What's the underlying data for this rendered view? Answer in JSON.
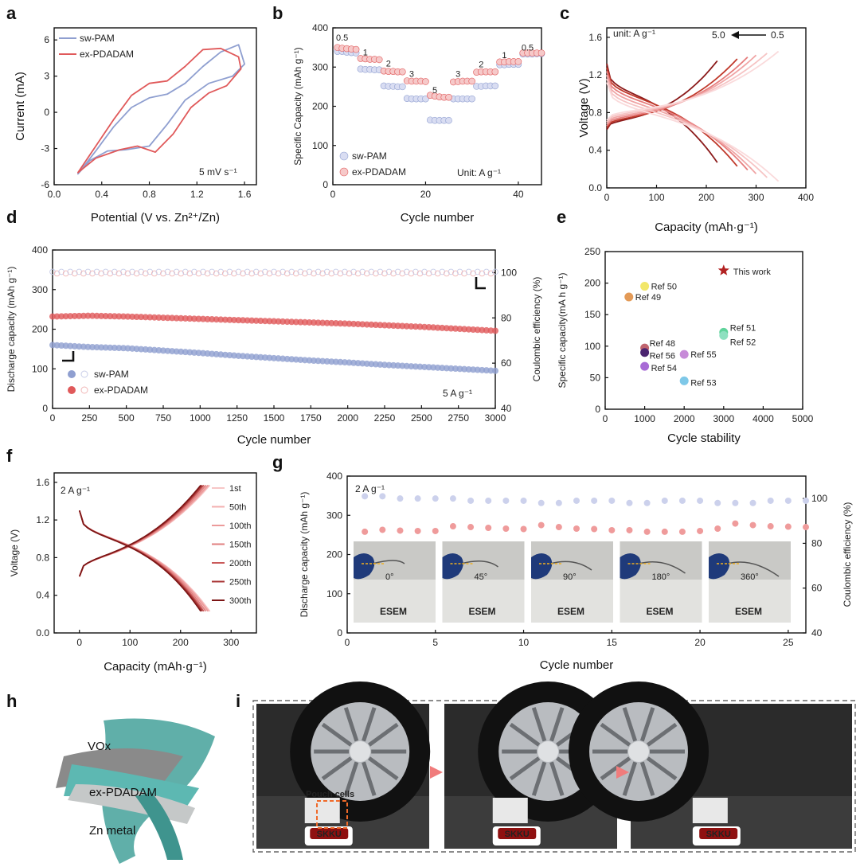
{
  "panel_labels": [
    "a",
    "b",
    "c",
    "d",
    "e",
    "f",
    "g",
    "h",
    "i"
  ],
  "colors": {
    "sw": "#8f9fd0",
    "ex": "#e0595a",
    "ce_sw": "#c8cde8",
    "ce_ex": "#f1b7b7"
  },
  "chart_data": [
    {
      "id": "a",
      "type": "line",
      "xlabel": "Potential (V vs. Zn²⁺/Zn)",
      "ylabel": "Current (mA)",
      "xlim": [
        0.0,
        1.7
      ],
      "ylim": [
        -6,
        7
      ],
      "xticks": [
        "0.0",
        "0.4",
        "0.8",
        "1.2",
        "1.6"
      ],
      "yticks": [
        "-6",
        "-3",
        "0",
        "3",
        "6"
      ],
      "annotation": "5 mV s⁻¹",
      "series": [
        {
          "name": "sw-PAM",
          "x": [
            0.2,
            0.35,
            0.5,
            0.65,
            0.8,
            0.95,
            1.1,
            1.25,
            1.4,
            1.55,
            1.6,
            1.5,
            1.3,
            1.1,
            0.95,
            0.8,
            0.6,
            0.45,
            0.3,
            0.2
          ],
          "y": [
            -5.1,
            -3.2,
            -1.2,
            0.4,
            1.2,
            1.5,
            2.4,
            3.8,
            5.0,
            5.6,
            4.0,
            3.0,
            2.4,
            1.0,
            -1.0,
            -2.8,
            -3.1,
            -3.2,
            -4.0,
            -5.1
          ]
        },
        {
          "name": "ex-PDADAM",
          "x": [
            0.2,
            0.35,
            0.5,
            0.65,
            0.8,
            0.95,
            1.1,
            1.25,
            1.4,
            1.55,
            1.57,
            1.45,
            1.3,
            1.15,
            1.0,
            0.85,
            0.7,
            0.55,
            0.35,
            0.2
          ],
          "y": [
            -5.0,
            -2.8,
            -0.6,
            1.4,
            2.4,
            2.6,
            3.8,
            5.2,
            5.3,
            4.6,
            3.6,
            2.2,
            1.6,
            0.4,
            -1.8,
            -3.3,
            -2.8,
            -3.1,
            -3.8,
            -5.0
          ]
        }
      ]
    },
    {
      "id": "b",
      "type": "scatter",
      "xlabel": "Cycle number",
      "ylabel": "Specific Capacity (mAh g⁻¹)",
      "xlim": [
        0,
        45
      ],
      "ylim": [
        0,
        400
      ],
      "xticks": [
        "0",
        "20",
        "40"
      ],
      "yticks": [
        "0",
        "100",
        "200",
        "300",
        "400"
      ],
      "unit_note": "Unit: A g⁻¹",
      "rate_labels": [
        {
          "text": "0.5",
          "x": 2,
          "y": 368
        },
        {
          "text": "1",
          "x": 7,
          "y": 330
        },
        {
          "text": "2",
          "x": 12,
          "y": 302
        },
        {
          "text": "3",
          "x": 17,
          "y": 275
        },
        {
          "text": "5",
          "x": 22,
          "y": 234
        },
        {
          "text": "3",
          "x": 27,
          "y": 275
        },
        {
          "text": "2",
          "x": 32,
          "y": 300
        },
        {
          "text": "1",
          "x": 37,
          "y": 323
        },
        {
          "text": "0.5",
          "x": 42,
          "y": 342
        }
      ],
      "series": [
        {
          "name": "sw-PAM",
          "x": [
            1,
            2,
            3,
            4,
            5,
            6,
            7,
            8,
            9,
            10,
            11,
            12,
            13,
            14,
            15,
            16,
            17,
            18,
            19,
            20,
            21,
            22,
            23,
            24,
            25,
            26,
            27,
            28,
            29,
            30,
            31,
            32,
            33,
            34,
            35,
            36,
            37,
            38,
            39,
            40,
            41,
            42,
            43,
            44,
            45
          ],
          "y": [
            340,
            340,
            338,
            337,
            336,
            295,
            294,
            294,
            293,
            293,
            252,
            251,
            251,
            250,
            250,
            220,
            219,
            219,
            219,
            219,
            165,
            164,
            164,
            164,
            164,
            219,
            219,
            219,
            219,
            219,
            251,
            251,
            252,
            252,
            252,
            306,
            306,
            307,
            307,
            307,
            333,
            333,
            333,
            334,
            334
          ]
        },
        {
          "name": "ex-PDADAM",
          "x": [
            1,
            2,
            3,
            4,
            5,
            6,
            7,
            8,
            9,
            10,
            11,
            12,
            13,
            14,
            15,
            16,
            17,
            18,
            19,
            20,
            21,
            22,
            23,
            24,
            25,
            26,
            27,
            28,
            29,
            30,
            31,
            32,
            33,
            34,
            35,
            36,
            37,
            38,
            39,
            40,
            41,
            42,
            43,
            44,
            45
          ],
          "y": [
            350,
            348,
            347,
            346,
            345,
            322,
            321,
            320,
            320,
            319,
            290,
            289,
            289,
            288,
            288,
            265,
            264,
            264,
            264,
            263,
            228,
            226,
            224,
            223,
            223,
            262,
            263,
            264,
            264,
            264,
            287,
            288,
            288,
            288,
            288,
            313,
            313,
            314,
            314,
            314,
            336,
            336,
            336,
            336,
            336
          ]
        }
      ]
    },
    {
      "id": "c",
      "type": "line",
      "xlabel": "Capacity (mAh·g⁻¹)",
      "ylabel": "Voltage (V)",
      "xlim": [
        0,
        400
      ],
      "ylim": [
        0.0,
        1.7
      ],
      "xticks": [
        "0",
        "100",
        "200",
        "300",
        "400"
      ],
      "yticks": [
        "0.0",
        "0.4",
        "0.8",
        "1.2",
        "1.6"
      ],
      "unit_note": "unit: A g⁻¹",
      "arrow_from": "0.5",
      "arrow_to": "5.0",
      "capacities": [
        222,
        262,
        283,
        300,
        322,
        345
      ],
      "series_colors": [
        "#8b1a1a",
        "#c0392b",
        "#e67e7e",
        "#f0a5a5",
        "#f6c4c4",
        "#fadadb"
      ]
    },
    {
      "id": "d",
      "type": "scatter",
      "xlabel": "Cycle number",
      "ylabel": "Discharge capacity (mAh g⁻¹)",
      "y2label": "Coulombic efficiency (%)",
      "xlim": [
        0,
        3000
      ],
      "ylim": [
        0,
        400
      ],
      "y2lim": [
        40,
        110
      ],
      "xticks": [
        "0",
        "250",
        "500",
        "750",
        "1000",
        "1250",
        "1500",
        "1750",
        "2000",
        "2250",
        "2500",
        "2750",
        "3000"
      ],
      "yticks": [
        "0",
        "100",
        "200",
        "300",
        "400"
      ],
      "y2ticks": [
        "40",
        "60",
        "80",
        "100"
      ],
      "annotation": "5 A g⁻¹",
      "series": [
        {
          "name": "sw-PAM",
          "x": [
            0,
            250,
            500,
            750,
            1000,
            1250,
            1500,
            1750,
            2000,
            2250,
            2500,
            2750,
            3000
          ],
          "y": [
            160,
            155,
            152,
            146,
            140,
            133,
            127,
            121,
            116,
            110,
            105,
            100,
            95
          ]
        },
        {
          "name": "ex-PDADAM",
          "x": [
            0,
            250,
            500,
            750,
            1000,
            1250,
            1500,
            1750,
            2000,
            2250,
            2500,
            2750,
            3000
          ],
          "y": [
            232,
            234,
            232,
            229,
            226,
            223,
            220,
            217,
            214,
            210,
            206,
            201,
            196
          ]
        },
        {
          "name": "sw-PAM CE",
          "x": [
            0,
            500,
            1000,
            1500,
            2000,
            2500,
            3000
          ],
          "y": [
            100,
            100,
            100,
            100,
            100,
            100,
            100
          ]
        },
        {
          "name": "ex-PDADAM CE",
          "x": [
            0,
            500,
            1000,
            1500,
            2000,
            2500,
            3000
          ],
          "y": [
            100,
            100,
            100,
            100,
            100,
            100,
            100
          ]
        }
      ]
    },
    {
      "id": "e",
      "type": "scatter",
      "xlabel": "Cycle stability",
      "ylabel": "Specific capacity(mA h g⁻¹)",
      "xlim": [
        0,
        5000
      ],
      "ylim": [
        0,
        250
      ],
      "xticks": [
        "0",
        "1000",
        "2000",
        "3000",
        "4000",
        "5000"
      ],
      "yticks": [
        "0",
        "50",
        "100",
        "150",
        "200",
        "250"
      ],
      "points": [
        {
          "label": "This work",
          "x": 3000,
          "y": 220,
          "color": "#b22222",
          "marker": "star"
        },
        {
          "label": "Ref 50",
          "x": 1000,
          "y": 195,
          "color": "#f2e76a"
        },
        {
          "label": "Ref 49",
          "x": 600,
          "y": 178,
          "color": "#e39a57"
        },
        {
          "label": "Ref 51",
          "x": 3000,
          "y": 122,
          "color": "#5fd39b"
        },
        {
          "label": "Ref 52",
          "x": 3000,
          "y": 117,
          "color": "#8ee0c0"
        },
        {
          "label": "Ref 48",
          "x": 1000,
          "y": 97,
          "color": "#c0646e"
        },
        {
          "label": "Ref 56",
          "x": 1000,
          "y": 90,
          "color": "#4a2470"
        },
        {
          "label": "Ref 55",
          "x": 2000,
          "y": 87,
          "color": "#c78bd8"
        },
        {
          "label": "Ref 54",
          "x": 1000,
          "y": 68,
          "color": "#a86bd6"
        },
        {
          "label": "Ref 53",
          "x": 2000,
          "y": 45,
          "color": "#7ec8e8"
        }
      ]
    },
    {
      "id": "f",
      "type": "line",
      "xlabel": "Capacity (mAh·g⁻¹)",
      "ylabel": "Voltage (V)",
      "xlim": [
        -50,
        350
      ],
      "ylim": [
        0.0,
        1.7
      ],
      "xticks": [
        "0",
        "100",
        "200",
        "300"
      ],
      "yticks": [
        "0.0",
        "0.4",
        "0.8",
        "1.2",
        "1.6"
      ],
      "annotation": "2 A g⁻¹",
      "legend": [
        "1st",
        "50th",
        "100th",
        "150th",
        "200th",
        "250th",
        "300th"
      ],
      "capacities": [
        258,
        256,
        254,
        250,
        246,
        243,
        240
      ],
      "series_colors": [
        "#f7c6c6",
        "#f3b0b0",
        "#ec9a9a",
        "#e07f7f",
        "#c95a5a",
        "#a83434",
        "#7c1515"
      ]
    },
    {
      "id": "g",
      "type": "scatter",
      "xlabel": "Cycle number",
      "ylabel": "Discharge capacity (mAh g⁻¹)",
      "y2label": "Coulombic efficiency (%)",
      "xlim": [
        0,
        26
      ],
      "ylim": [
        0,
        400
      ],
      "y2lim": [
        40,
        110
      ],
      "xticks": [
        "0",
        "5",
        "10",
        "15",
        "20",
        "25"
      ],
      "yticks": [
        "0",
        "100",
        "200",
        "300",
        "400"
      ],
      "y2ticks": [
        "40",
        "60",
        "80",
        "100"
      ],
      "annotation": "2 A g⁻¹",
      "angles": [
        "0°",
        "45°",
        "90°",
        "180°",
        "360°"
      ],
      "photo_text": "ESEM",
      "series": [
        {
          "name": "Discharge capacity",
          "x": [
            1,
            2,
            3,
            4,
            5,
            6,
            7,
            8,
            9,
            10,
            11,
            12,
            13,
            14,
            15,
            16,
            17,
            18,
            19,
            20,
            21,
            22,
            23,
            24,
            25,
            26
          ],
          "y": [
            258,
            263,
            261,
            260,
            260,
            272,
            270,
            268,
            266,
            265,
            275,
            270,
            266,
            265,
            262,
            262,
            258,
            258,
            258,
            260,
            266,
            279,
            275,
            272,
            271,
            270
          ]
        },
        {
          "name": "Coulombic efficiency",
          "x": [
            1,
            2,
            3,
            4,
            5,
            6,
            7,
            8,
            9,
            10,
            11,
            12,
            13,
            14,
            15,
            16,
            17,
            18,
            19,
            20,
            21,
            22,
            23,
            24,
            25,
            26
          ],
          "y": [
            101,
            101,
            100,
            100,
            100,
            100,
            99,
            99,
            99,
            99,
            98,
            98,
            99,
            99,
            99,
            98,
            98,
            99,
            99,
            99,
            98,
            98,
            98,
            99,
            99,
            99
          ]
        }
      ]
    }
  ],
  "panel_h": {
    "labels": [
      "VOx",
      "ex-PDADAM",
      "Zn metal"
    ]
  },
  "panel_i": {
    "callout": "Pouch cells",
    "sign": "SKKU"
  }
}
